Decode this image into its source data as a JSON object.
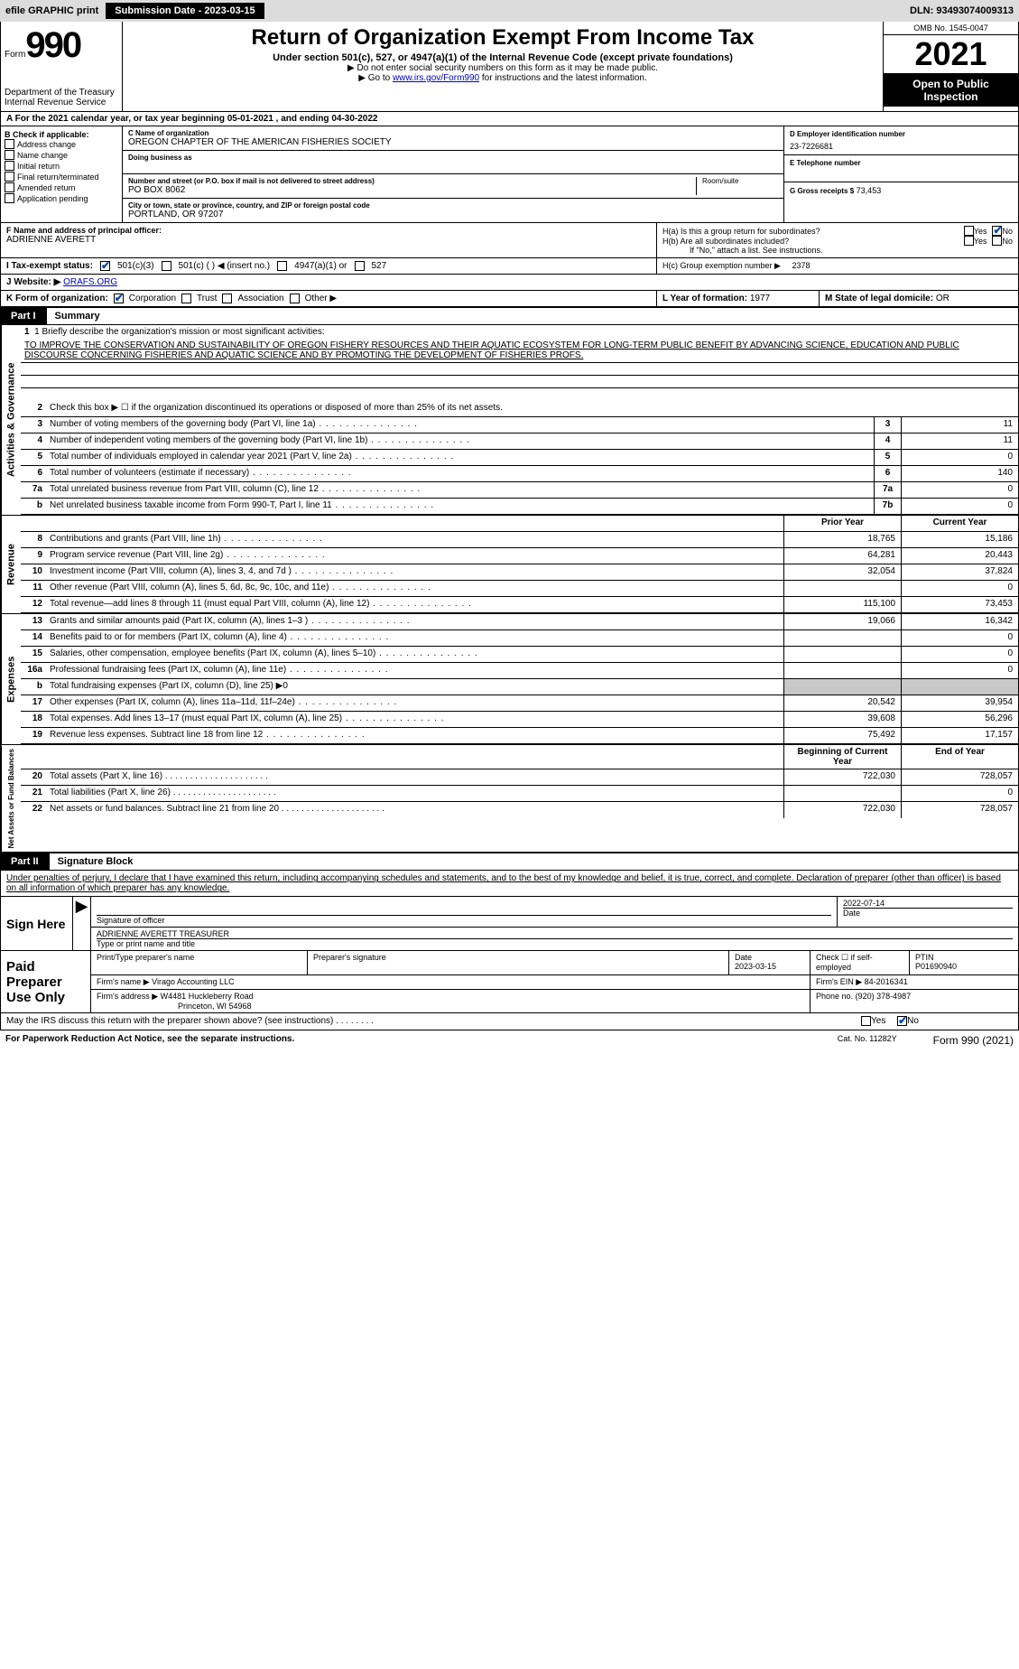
{
  "topbar": {
    "efile_label": "efile GRAPHIC print",
    "sub_date_label": "Submission Date - 2023-03-15",
    "dln": "DLN: 93493074009313"
  },
  "header": {
    "form_prefix": "Form",
    "form_number": "990",
    "dept1": "Department of the Treasury",
    "dept2": "Internal Revenue Service",
    "title": "Return of Organization Exempt From Income Tax",
    "subtitle": "Under section 501(c), 527, or 4947(a)(1) of the Internal Revenue Code (except private foundations)",
    "note1": "▶ Do not enter social security numbers on this form as it may be made public.",
    "note2_pre": "▶ Go to ",
    "note2_link": "www.irs.gov/Form990",
    "note2_post": " for instructions and the latest information.",
    "omb": "OMB No. 1545-0047",
    "year": "2021",
    "open": "Open to Public Inspection"
  },
  "cal_year": "A  For the 2021 calendar year, or tax year beginning 05-01-2021    , and ending 04-30-2022",
  "blockB": {
    "label": "B Check if applicable:",
    "items": [
      "Address change",
      "Name change",
      "Initial return",
      "Final return/terminated",
      "Amended return",
      "Application pending"
    ]
  },
  "blockC": {
    "name_label": "C Name of organization",
    "name": "OREGON CHAPTER OF THE AMERICAN FISHERIES SOCIETY",
    "dba_label": "Doing business as",
    "addr_label": "Number and street (or P.O. box if mail is not delivered to street address)",
    "room_label": "Room/suite",
    "addr": "PO BOX 8062",
    "city_label": "City or town, state or province, country, and ZIP or foreign postal code",
    "city": "PORTLAND, OR  97207"
  },
  "blockD": {
    "label": "D Employer identification number",
    "val": "23-7226681"
  },
  "blockE": {
    "label": "E Telephone number",
    "val": ""
  },
  "blockG": {
    "label": "G Gross receipts $",
    "val": "73,453"
  },
  "blockF": {
    "label": "F Name and address of principal officer:",
    "val": "ADRIENNE AVERETT"
  },
  "blockH": {
    "ha": "H(a)  Is this a group return for subordinates?",
    "hb": "H(b)  Are all subordinates included?",
    "hb_note": "If \"No,\" attach a list. See instructions.",
    "hc": "H(c)  Group exemption number ▶",
    "hc_val": "2378",
    "yes": "Yes",
    "no": "No"
  },
  "rowI": {
    "label": "I  Tax-exempt status:",
    "o1": "501(c)(3)",
    "o2": "501(c) (  ) ◀ (insert no.)",
    "o3": "4947(a)(1) or",
    "o4": "527"
  },
  "rowJ": {
    "label": "J  Website: ▶",
    "val": "ORAFS.ORG"
  },
  "rowK": {
    "label": "K Form of organization:",
    "o1": "Corporation",
    "o2": "Trust",
    "o3": "Association",
    "o4": "Other ▶"
  },
  "rowL": {
    "label": "L Year of formation:",
    "val": "1977"
  },
  "rowM": {
    "label": "M State of legal domicile:",
    "val": "OR"
  },
  "part1": {
    "num": "Part I",
    "title": "Summary"
  },
  "mission": {
    "q": "1  Briefly describe the organization's mission or most significant activities:",
    "text": "TO IMPROVE THE CONSERVATION AND SUSTAINABILITY OF OREGON FISHERY RESOURCES AND THEIR AQUATIC ECOSYSTEM FOR LONG-TERM PUBLIC BENEFIT BY ADVANCING SCIENCE, EDUCATION AND PUBLIC DISCOURSE CONCERNING FISHERIES AND AQUATIC SCIENCE AND BY PROMOTING THE DEVELOPMENT OF FISHERIES PROFS."
  },
  "side_labels": {
    "gov": "Activities & Governance",
    "rev": "Revenue",
    "exp": "Expenses",
    "net": "Net Assets or Fund Balances"
  },
  "gov_rows": [
    {
      "n": "2",
      "d": "Check this box ▶ ☐  if the organization discontinued its operations or disposed of more than 25% of its net assets."
    },
    {
      "n": "3",
      "d": "Number of voting members of the governing body (Part VI, line 1a)",
      "box": "3",
      "v": "11"
    },
    {
      "n": "4",
      "d": "Number of independent voting members of the governing body (Part VI, line 1b)",
      "box": "4",
      "v": "11"
    },
    {
      "n": "5",
      "d": "Total number of individuals employed in calendar year 2021 (Part V, line 2a)",
      "box": "5",
      "v": "0"
    },
    {
      "n": "6",
      "d": "Total number of volunteers (estimate if necessary)",
      "box": "6",
      "v": "140"
    },
    {
      "n": "7a",
      "d": "Total unrelated business revenue from Part VIII, column (C), line 12",
      "box": "7a",
      "v": "0"
    },
    {
      "n": "b",
      "d": "Net unrelated business taxable income from Form 990-T, Part I, line 11",
      "box": "7b",
      "v": "0"
    }
  ],
  "col_hdr": {
    "prior": "Prior Year",
    "current": "Current Year"
  },
  "rev_rows": [
    {
      "n": "8",
      "d": "Contributions and grants (Part VIII, line 1h)",
      "p": "18,765",
      "c": "15,186"
    },
    {
      "n": "9",
      "d": "Program service revenue (Part VIII, line 2g)",
      "p": "64,281",
      "c": "20,443"
    },
    {
      "n": "10",
      "d": "Investment income (Part VIII, column (A), lines 3, 4, and 7d )",
      "p": "32,054",
      "c": "37,824"
    },
    {
      "n": "11",
      "d": "Other revenue (Part VIII, column (A), lines 5, 6d, 8c, 9c, 10c, and 11e)",
      "p": "",
      "c": "0"
    },
    {
      "n": "12",
      "d": "Total revenue—add lines 8 through 11 (must equal Part VIII, column (A), line 12)",
      "p": "115,100",
      "c": "73,453"
    }
  ],
  "exp_rows": [
    {
      "n": "13",
      "d": "Grants and similar amounts paid (Part IX, column (A), lines 1–3 )",
      "p": "19,066",
      "c": "16,342"
    },
    {
      "n": "14",
      "d": "Benefits paid to or for members (Part IX, column (A), line 4)",
      "p": "",
      "c": "0"
    },
    {
      "n": "15",
      "d": "Salaries, other compensation, employee benefits (Part IX, column (A), lines 5–10)",
      "p": "",
      "c": "0"
    },
    {
      "n": "16a",
      "d": "Professional fundraising fees (Part IX, column (A), line 11e)",
      "p": "",
      "c": "0"
    },
    {
      "n": "b",
      "d": "Total fundraising expenses (Part IX, column (D), line 25) ▶0",
      "shade": true
    },
    {
      "n": "17",
      "d": "Other expenses (Part IX, column (A), lines 11a–11d, 11f–24e)",
      "p": "20,542",
      "c": "39,954"
    },
    {
      "n": "18",
      "d": "Total expenses. Add lines 13–17 (must equal Part IX, column (A), line 25)",
      "p": "39,608",
      "c": "56,296"
    },
    {
      "n": "19",
      "d": "Revenue less expenses. Subtract line 18 from line 12",
      "p": "75,492",
      "c": "17,157"
    }
  ],
  "net_hdr": {
    "b": "Beginning of Current Year",
    "e": "End of Year"
  },
  "net_rows": [
    {
      "n": "20",
      "d": "Total assets (Part X, line 16)",
      "p": "722,030",
      "c": "728,057"
    },
    {
      "n": "21",
      "d": "Total liabilities (Part X, line 26)",
      "p": "",
      "c": "0"
    },
    {
      "n": "22",
      "d": "Net assets or fund balances. Subtract line 21 from line 20",
      "p": "722,030",
      "c": "728,057"
    }
  ],
  "part2": {
    "num": "Part II",
    "title": "Signature Block"
  },
  "penalty": "Under penalties of perjury, I declare that I have examined this return, including accompanying schedules and statements, and to the best of my knowledge and belief, it is true, correct, and complete. Declaration of preparer (other than officer) is based on all information of which preparer has any knowledge.",
  "sign": {
    "here": "Sign Here",
    "sig_label": "Signature of officer",
    "date_label": "Date",
    "date": "2022-07-14",
    "name": "ADRIENNE AVERETT TREASURER",
    "name_label": "Type or print name and title"
  },
  "paid": {
    "title": "Paid Preparer Use Only",
    "pn_label": "Print/Type preparer's name",
    "ps_label": "Preparer's signature",
    "pd_label": "Date",
    "pd": "2023-03-15",
    "chk_label": "Check ☐ if self-employed",
    "ptin_label": "PTIN",
    "ptin": "P01690940",
    "firm_label": "Firm's name    ▶",
    "firm": "Virago Accounting LLC",
    "ein_label": "Firm's EIN ▶",
    "ein": "84-2016341",
    "addr_label": "Firm's address ▶",
    "addr1": "W4481 Huckleberry Road",
    "addr2": "Princeton, WI  54968",
    "phone_label": "Phone no.",
    "phone": "(920) 378-4987"
  },
  "may_discuss": "May the IRS discuss this return with the preparer shown above? (see instructions)",
  "footer": {
    "l": "For Paperwork Reduction Act Notice, see the separate instructions.",
    "m": "Cat. No. 11282Y",
    "r": "Form 990 (2021)"
  }
}
